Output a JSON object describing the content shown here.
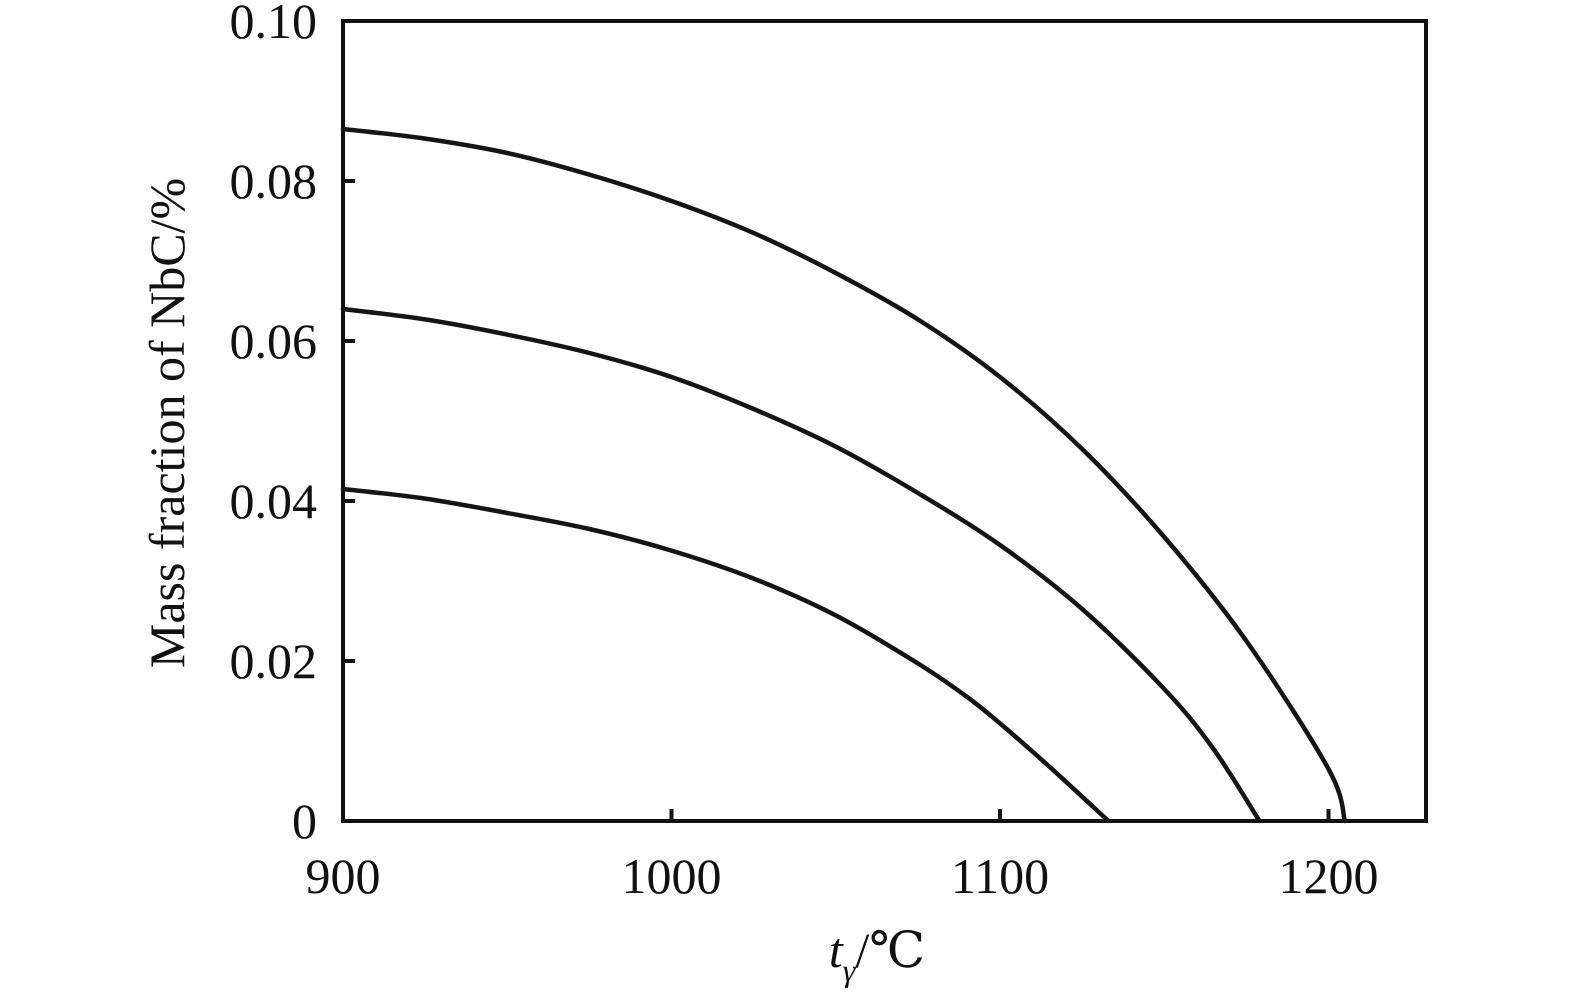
{
  "chart_data": {
    "type": "line",
    "title": "",
    "ylabel": "Mass fraction of NbC/%",
    "xlabel": {
      "main": "t",
      "subscript": "γ",
      "unit": "/℃"
    },
    "xlim": [
      900,
      1230
    ],
    "ylim": [
      0,
      0.1
    ],
    "xticks": [
      900,
      1000,
      1100,
      1200
    ],
    "xtick_labels": [
      "900",
      "1000",
      "1100",
      "1200"
    ],
    "yticks": [
      0,
      0.02,
      0.04,
      0.06,
      0.08,
      0.1
    ],
    "ytick_labels": [
      "0",
      "0.02",
      "0.04",
      "0.06",
      "0.08",
      "0.10"
    ],
    "grid": false,
    "legend": null,
    "series": [
      {
        "x": [
          900,
          925,
          950,
          975,
          1000,
          1025,
          1050,
          1075,
          1100,
          1125,
          1150,
          1175,
          1200,
          1205
        ],
        "y": [
          0.0865,
          0.0853,
          0.0835,
          0.0808,
          0.0775,
          0.0735,
          0.0685,
          0.0627,
          0.0555,
          0.0465,
          0.0355,
          0.0225,
          0.0065,
          0.0
        ]
      },
      {
        "x": [
          900,
          925,
          950,
          975,
          1000,
          1025,
          1050,
          1075,
          1100,
          1125,
          1150,
          1165,
          1179
        ],
        "y": [
          0.064,
          0.0627,
          0.0608,
          0.0585,
          0.0555,
          0.0515,
          0.0468,
          0.041,
          0.0345,
          0.0265,
          0.0165,
          0.009,
          0.0
        ]
      },
      {
        "x": [
          900,
          925,
          950,
          975,
          1000,
          1025,
          1050,
          1075,
          1090,
          1100,
          1115,
          1133
        ],
        "y": [
          0.0415,
          0.0403,
          0.0385,
          0.0365,
          0.0338,
          0.0303,
          0.0257,
          0.0197,
          0.0155,
          0.0122,
          0.0068,
          0.0
        ]
      }
    ]
  }
}
